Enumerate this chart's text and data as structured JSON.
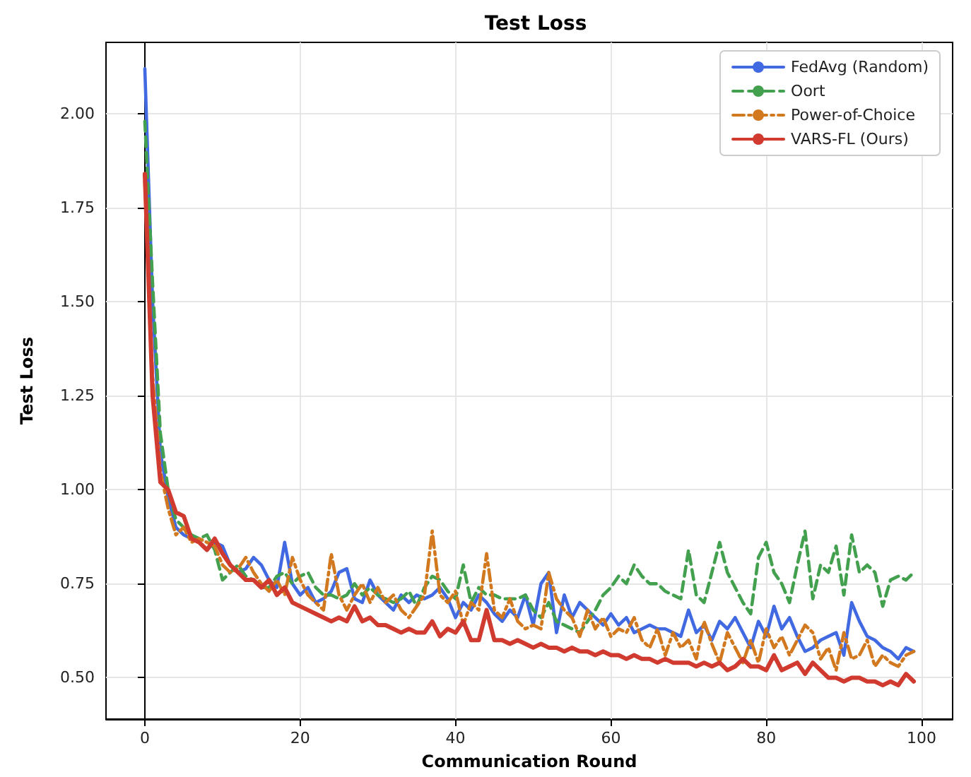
{
  "chart_data": {
    "type": "line",
    "title": "Test Loss",
    "xlabel": "Communication Round",
    "ylabel": "Test Loss",
    "x": [
      0,
      1,
      2,
      3,
      4,
      5,
      6,
      7,
      8,
      9,
      10,
      11,
      12,
      13,
      14,
      15,
      16,
      17,
      18,
      19,
      20,
      21,
      22,
      23,
      24,
      25,
      26,
      27,
      28,
      29,
      30,
      31,
      32,
      33,
      34,
      35,
      36,
      37,
      38,
      39,
      40,
      41,
      42,
      43,
      44,
      45,
      46,
      47,
      48,
      49,
      50,
      51,
      52,
      53,
      54,
      55,
      56,
      57,
      58,
      59,
      60,
      61,
      62,
      63,
      64,
      65,
      66,
      67,
      68,
      69,
      70,
      71,
      72,
      73,
      74,
      75,
      76,
      77,
      78,
      79,
      80,
      81,
      82,
      83,
      84,
      85,
      86,
      87,
      88,
      89,
      90,
      91,
      92,
      93,
      94,
      95,
      96,
      97,
      98,
      99
    ],
    "series": [
      {
        "name": "FedAvg (Random)",
        "color": "#4169e1",
        "line_style": "solid",
        "values": [
          2.12,
          1.5,
          1.1,
          0.98,
          0.9,
          0.88,
          0.87,
          0.86,
          0.84,
          0.86,
          0.85,
          0.8,
          0.78,
          0.79,
          0.82,
          0.8,
          0.76,
          0.74,
          0.86,
          0.75,
          0.72,
          0.74,
          0.7,
          0.71,
          0.73,
          0.78,
          0.79,
          0.71,
          0.7,
          0.76,
          0.72,
          0.7,
          0.68,
          0.72,
          0.7,
          0.72,
          0.71,
          0.72,
          0.74,
          0.71,
          0.66,
          0.7,
          0.68,
          0.72,
          0.7,
          0.67,
          0.65,
          0.68,
          0.66,
          0.72,
          0.64,
          0.75,
          0.78,
          0.62,
          0.72,
          0.66,
          0.7,
          0.68,
          0.66,
          0.64,
          0.67,
          0.64,
          0.66,
          0.62,
          0.63,
          0.64,
          0.63,
          0.63,
          0.62,
          0.61,
          0.68,
          0.62,
          0.64,
          0.6,
          0.65,
          0.63,
          0.66,
          0.62,
          0.58,
          0.65,
          0.61,
          0.69,
          0.63,
          0.66,
          0.61,
          0.57,
          0.58,
          0.6,
          0.61,
          0.62,
          0.56,
          0.7,
          0.65,
          0.61,
          0.6,
          0.58,
          0.57,
          0.55,
          0.58,
          0.57
        ]
      },
      {
        "name": "Oort",
        "color": "#43a04f",
        "line_style": "dashed",
        "values": [
          1.98,
          1.55,
          1.15,
          1.0,
          0.92,
          0.9,
          0.88,
          0.87,
          0.88,
          0.84,
          0.76,
          0.78,
          0.8,
          0.77,
          0.76,
          0.74,
          0.74,
          0.77,
          0.78,
          0.75,
          0.77,
          0.78,
          0.74,
          0.72,
          0.72,
          0.71,
          0.72,
          0.75,
          0.72,
          0.74,
          0.72,
          0.71,
          0.7,
          0.71,
          0.73,
          0.69,
          0.74,
          0.77,
          0.76,
          0.73,
          0.71,
          0.8,
          0.7,
          0.74,
          0.72,
          0.72,
          0.71,
          0.71,
          0.71,
          0.72,
          0.68,
          0.66,
          0.7,
          0.65,
          0.64,
          0.63,
          0.62,
          0.65,
          0.68,
          0.72,
          0.74,
          0.77,
          0.75,
          0.8,
          0.77,
          0.75,
          0.75,
          0.73,
          0.72,
          0.71,
          0.84,
          0.72,
          0.7,
          0.78,
          0.86,
          0.78,
          0.74,
          0.7,
          0.67,
          0.82,
          0.86,
          0.78,
          0.75,
          0.7,
          0.8,
          0.89,
          0.71,
          0.8,
          0.78,
          0.85,
          0.72,
          0.88,
          0.78,
          0.8,
          0.78,
          0.69,
          0.76,
          0.77,
          0.76,
          0.78
        ]
      },
      {
        "name": "Power-of-Choice",
        "color": "#d2791f",
        "line_style": "dashdot",
        "values": [
          1.82,
          1.3,
          1.05,
          0.95,
          0.88,
          0.9,
          0.86,
          0.87,
          0.86,
          0.85,
          0.8,
          0.78,
          0.79,
          0.82,
          0.78,
          0.75,
          0.73,
          0.76,
          0.72,
          0.82,
          0.76,
          0.72,
          0.7,
          0.68,
          0.83,
          0.72,
          0.68,
          0.72,
          0.75,
          0.7,
          0.74,
          0.7,
          0.72,
          0.68,
          0.66,
          0.69,
          0.72,
          0.89,
          0.72,
          0.7,
          0.73,
          0.64,
          0.7,
          0.68,
          0.83,
          0.68,
          0.66,
          0.71,
          0.65,
          0.63,
          0.64,
          0.63,
          0.78,
          0.71,
          0.68,
          0.66,
          0.61,
          0.68,
          0.63,
          0.66,
          0.61,
          0.63,
          0.62,
          0.66,
          0.6,
          0.58,
          0.63,
          0.56,
          0.62,
          0.58,
          0.6,
          0.55,
          0.65,
          0.59,
          0.54,
          0.62,
          0.58,
          0.54,
          0.6,
          0.54,
          0.63,
          0.58,
          0.61,
          0.56,
          0.6,
          0.64,
          0.62,
          0.55,
          0.58,
          0.52,
          0.62,
          0.55,
          0.56,
          0.6,
          0.53,
          0.56,
          0.54,
          0.53,
          0.56,
          0.57
        ]
      },
      {
        "name": "VARS-FL (Ours)",
        "color": "#d03a2f",
        "line_style": "solid",
        "values": [
          1.84,
          1.25,
          1.02,
          1.0,
          0.94,
          0.93,
          0.87,
          0.86,
          0.84,
          0.87,
          0.83,
          0.8,
          0.78,
          0.76,
          0.76,
          0.74,
          0.76,
          0.72,
          0.74,
          0.7,
          0.69,
          0.68,
          0.67,
          0.66,
          0.65,
          0.66,
          0.65,
          0.69,
          0.65,
          0.66,
          0.64,
          0.64,
          0.63,
          0.62,
          0.63,
          0.62,
          0.62,
          0.65,
          0.61,
          0.63,
          0.62,
          0.65,
          0.6,
          0.6,
          0.68,
          0.6,
          0.6,
          0.59,
          0.6,
          0.59,
          0.58,
          0.59,
          0.58,
          0.58,
          0.57,
          0.58,
          0.57,
          0.57,
          0.56,
          0.57,
          0.56,
          0.56,
          0.55,
          0.56,
          0.55,
          0.55,
          0.54,
          0.55,
          0.54,
          0.54,
          0.54,
          0.53,
          0.54,
          0.53,
          0.54,
          0.52,
          0.53,
          0.55,
          0.53,
          0.53,
          0.52,
          0.56,
          0.52,
          0.53,
          0.54,
          0.51,
          0.54,
          0.52,
          0.5,
          0.5,
          0.49,
          0.5,
          0.5,
          0.49,
          0.49,
          0.48,
          0.49,
          0.48,
          0.51,
          0.49
        ]
      }
    ],
    "xlim": [
      -5,
      104
    ],
    "ylim": [
      0.39,
      2.19
    ],
    "xticks": [
      0,
      20,
      40,
      60,
      80,
      100
    ],
    "yticks": [
      {
        "value": 0.5,
        "label": "0.50"
      },
      {
        "value": 0.75,
        "label": "0.75"
      },
      {
        "value": 1.0,
        "label": "1.00"
      },
      {
        "value": 1.25,
        "label": "1.25"
      },
      {
        "value": 1.5,
        "label": "1.50"
      },
      {
        "value": 1.75,
        "label": "1.75"
      },
      {
        "value": 2.0,
        "label": "2.00"
      }
    ],
    "grid": true,
    "legend": "top right",
    "marker": "none"
  }
}
